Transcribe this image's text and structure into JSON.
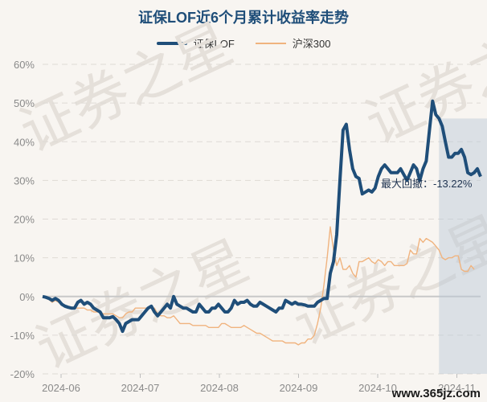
{
  "chart_data": {
    "type": "line",
    "title": "证保LOF近6个月累计收益率走势",
    "y_ticks": [
      "60%",
      "50%",
      "40%",
      "30%",
      "20%",
      "10%",
      "0%",
      "-10%",
      "-20%"
    ],
    "x_ticks": [
      "2024-06",
      "2024-07",
      "2024-08",
      "2024-09",
      "2024-10",
      "2024-11"
    ],
    "ylim": [
      -20,
      60
    ],
    "grid": true,
    "legend_position": "top-center",
    "series": [
      {
        "name": "证保LOF",
        "color": "#1f4e79",
        "values": [
          0,
          -0.2,
          -0.5,
          -1,
          -0.5,
          -1,
          -2,
          -2.5,
          -2.8,
          -3,
          -3,
          -1.5,
          -1,
          -2,
          -1.5,
          -2,
          -3,
          -3.5,
          -4,
          -5.5,
          -5.5,
          -5.5,
          -5.2,
          -6,
          -7,
          -9,
          -7,
          -6.5,
          -6,
          -6,
          -6,
          -5,
          -4,
          -3,
          -2.5,
          -4,
          -5,
          -4,
          -3,
          -2,
          -3,
          0,
          -2,
          -2.5,
          -3,
          -3,
          -3.5,
          -4,
          -4,
          -2,
          -3,
          -4,
          -4,
          -3,
          -3,
          -2,
          -3,
          -4,
          -4,
          -3,
          -1,
          -2,
          -1.5,
          -1.5,
          -1,
          -2,
          -2.5,
          -2.5,
          -1.5,
          -2,
          -2.5,
          -3,
          -3.5,
          -4,
          -3,
          -3,
          -1,
          -1.5,
          -2,
          -1.5,
          -2,
          -2,
          -2.2,
          -2.5,
          -2.5,
          -2.5,
          -1.5,
          -1,
          -0.5,
          -0.5,
          6,
          9,
          16,
          30,
          43,
          44.5,
          38,
          33,
          31,
          30.5,
          26.5,
          27,
          27.5,
          27,
          28,
          31,
          33,
          34,
          33,
          32,
          32,
          32,
          33,
          31.5,
          30,
          32,
          34,
          33,
          30,
          33,
          35,
          43,
          50.5,
          47,
          46,
          44,
          40,
          36,
          36,
          37,
          37,
          38,
          36,
          32,
          31.5,
          32,
          33,
          31
        ]
      },
      {
        "name": "沪深300",
        "color": "#f0b37e",
        "values": [
          0,
          -0.3,
          -0.8,
          -1.5,
          -1,
          -1.5,
          -2,
          -2.5,
          -3,
          -3,
          -3,
          -3,
          -3,
          -3,
          -3.5,
          -3.5,
          -4,
          -4,
          -4,
          -4.5,
          -4.5,
          -4.5,
          -4.5,
          -5,
          -5.5,
          -5.5,
          -4.5,
          -4,
          -4,
          -3,
          -3,
          -3,
          -3,
          -3,
          -3,
          -3,
          -4.5,
          -5,
          -5,
          -5.5,
          -5.5,
          -5,
          -6,
          -7,
          -7,
          -7,
          -7,
          -7.5,
          -7.5,
          -7.5,
          -7.5,
          -7.5,
          -8,
          -8,
          -8,
          -8,
          -7,
          -7,
          -7.5,
          -8,
          -8,
          -8,
          -8,
          -7.5,
          -8,
          -8.5,
          -9,
          -9.5,
          -9.5,
          -10,
          -10.5,
          -11,
          -11.5,
          -11.5,
          -11.5,
          -11.5,
          -12,
          -12,
          -12,
          -12,
          -12.5,
          -12,
          -12,
          -11,
          -11,
          -10,
          -7,
          -3,
          3,
          10,
          18,
          12,
          8,
          10,
          7,
          7,
          8,
          6,
          5,
          9,
          9,
          9.5,
          10,
          9,
          8.5,
          9.5,
          9,
          8,
          9,
          9,
          8,
          8,
          8,
          8,
          8.5,
          12,
          11,
          11,
          15,
          14,
          15,
          14.5,
          14,
          13,
          12,
          10,
          9.5,
          10,
          10,
          10.5,
          10.5,
          7,
          6.5,
          6.5,
          8,
          7
        ]
      }
    ],
    "annotation": {
      "label": "最大回撤：-13.22%",
      "shaded_range_index": [
        124,
        142
      ]
    }
  },
  "watermark": "证券之星",
  "site_label": "www.365jz.com"
}
